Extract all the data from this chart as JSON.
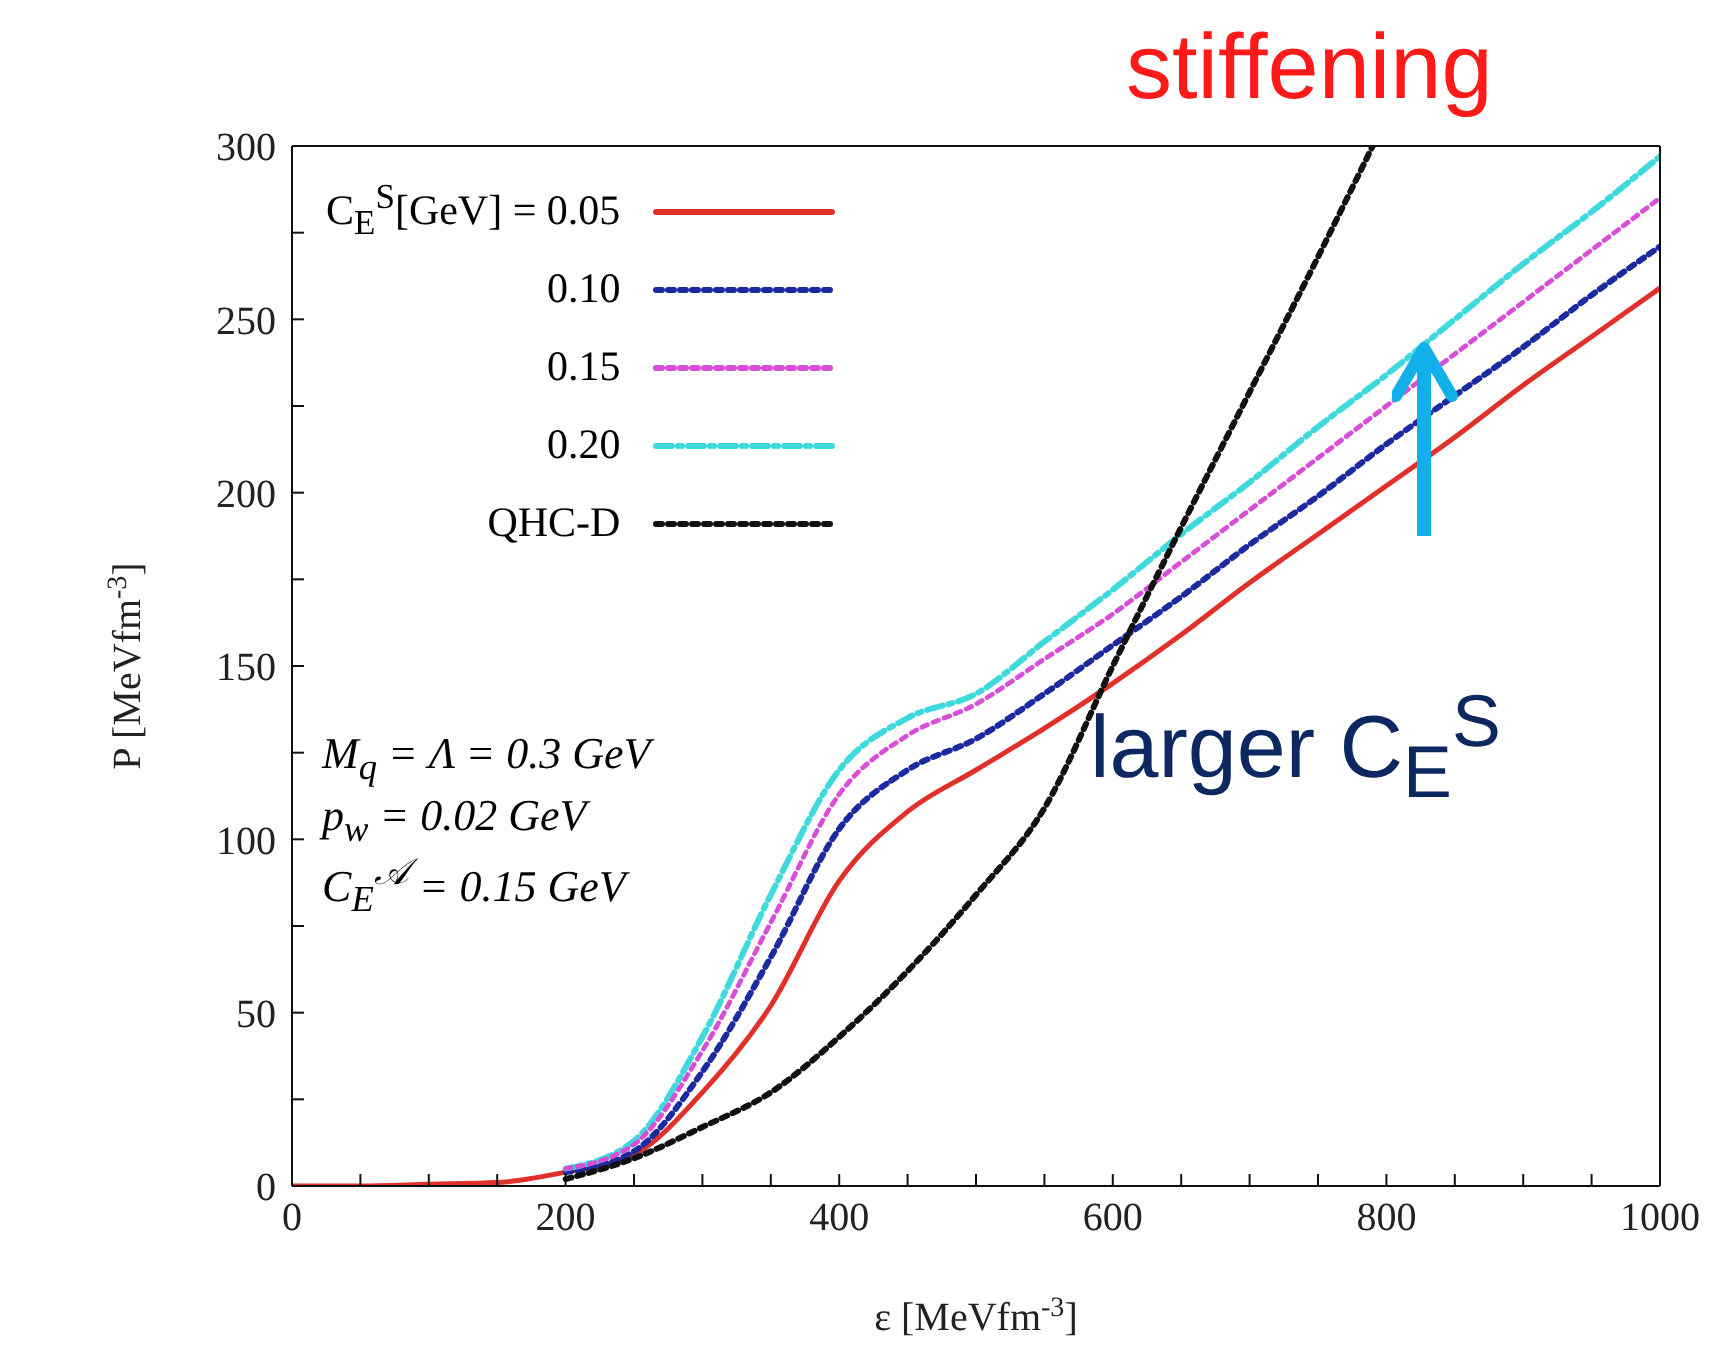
{
  "chart_data": {
    "type": "line",
    "xlabel": "ε [MeVfm$^{-3}$]",
    "ylabel": "P [MeVfm$^{-3}$]",
    "x": [
      0,
      50,
      100,
      150,
      200,
      250,
      300,
      350,
      400,
      450,
      500,
      550,
      600,
      650,
      700,
      750,
      800,
      850,
      900,
      950,
      1000
    ],
    "series": [
      {
        "name": "C$_{E}$$^{S}$[GeV] = 0.05",
        "color": "#e0302a",
        "line_style": "solid",
        "values": [
          0,
          0,
          0.5,
          1,
          4,
          9,
          27,
          52,
          88,
          108,
          120,
          132,
          145,
          159,
          174,
          188,
          202,
          216,
          231,
          245,
          259
        ]
      },
      {
        "name": "0.10",
        "color": "#1c2aa0",
        "line_style": "dotted",
        "values": [
          null,
          null,
          null,
          null,
          4,
          10,
          33,
          66,
          103,
          120,
          129,
          142,
          156,
          170,
          185,
          199,
          214,
          228,
          242,
          257,
          271
        ]
      },
      {
        "name": "0.15",
        "color": "#d64fd6",
        "line_style": "dotted",
        "values": [
          null,
          null,
          null,
          null,
          5,
          12,
          39,
          76,
          113,
          130,
          139,
          152,
          165,
          180,
          195,
          210,
          225,
          240,
          255,
          270,
          285
        ]
      },
      {
        "name": "0.20",
        "color": "#3fd8dc",
        "line_style": "dashed",
        "values": [
          null,
          null,
          null,
          null,
          5,
          13,
          43,
          84,
          120,
          135,
          142,
          157,
          172,
          188,
          203,
          219,
          234,
          250,
          266,
          281,
          297
        ]
      },
      {
        "name": "QHC-D",
        "color": "#111111",
        "line_style": "dotted",
        "x": [
          200,
          250,
          300,
          350,
          400,
          450,
          500,
          550,
          600,
          650,
          700,
          750,
          790
        ],
        "values": [
          2,
          8,
          17,
          27,
          43,
          62,
          84,
          109,
          150,
          190,
          229,
          268,
          300
        ]
      }
    ],
    "xlim": [
      0,
      1000
    ],
    "xticks": [
      0,
      {
        "value": 50,
        "label": null
      },
      {
        "value": 100,
        "label": null
      },
      {
        "value": 150,
        "label": null
      },
      200,
      {
        "value": 250,
        "label": null
      },
      {
        "value": 300,
        "label": null
      },
      {
        "value": 350,
        "label": null
      },
      400,
      {
        "value": 450,
        "label": null
      },
      {
        "value": 500,
        "label": null
      },
      {
        "value": 550,
        "label": null
      },
      600,
      {
        "value": 650,
        "label": null
      },
      {
        "value": 700,
        "label": null
      },
      {
        "value": 750,
        "label": null
      },
      800,
      {
        "value": 850,
        "label": null
      },
      {
        "value": 900,
        "label": null
      },
      {
        "value": 950,
        "label": null
      },
      1000
    ],
    "ylim": [
      0,
      300
    ],
    "yticks": [
      0,
      {
        "value": 25,
        "label": null
      },
      50,
      {
        "value": 75,
        "label": null
      },
      100,
      {
        "value": 125,
        "label": null
      },
      150,
      {
        "value": 175,
        "label": null
      },
      200,
      {
        "value": 225,
        "label": null
      },
      250,
      {
        "value": 275,
        "label": null
      },
      300
    ],
    "legend": "top left",
    "annotations": [
      "M$_{q}$ = Λ = 0.3 GeV",
      "p$_{w}$ = 0.02 GeV",
      "C$_{E}$$^{𝒜}$ = 0.15 GeV",
      "stiffening",
      "larger C$_{E}$$^{S}$"
    ]
  }
}
